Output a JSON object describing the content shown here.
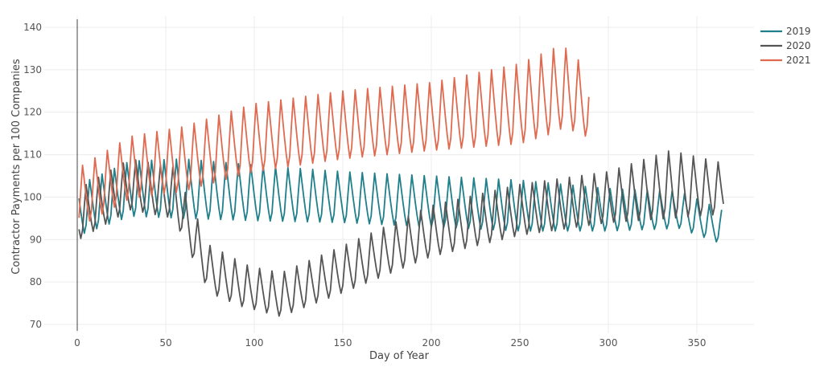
{
  "chart_data": {
    "type": "line",
    "title": "",
    "xlabel": "Day of Year",
    "ylabel": "Contractor Payments per 100 Companies",
    "xlim": [
      -5,
      383
    ],
    "ylim": [
      68,
      142
    ],
    "xticks": [
      0,
      50,
      100,
      150,
      200,
      250,
      300,
      350
    ],
    "yticks": [
      70,
      80,
      90,
      100,
      110,
      120,
      130,
      140
    ],
    "grid": true,
    "legend_position": "top-right",
    "period": 7,
    "series": [
      {
        "name": "2019",
        "color": "#1f7f8a",
        "x_range": [
          1,
          364
        ],
        "trend": [
          [
            1,
            97
          ],
          [
            30,
            102
          ],
          [
            60,
            102
          ],
          [
            100,
            101
          ],
          [
            150,
            100
          ],
          [
            200,
            99
          ],
          [
            250,
            98
          ],
          [
            300,
            97
          ],
          [
            340,
            97
          ],
          [
            364,
            93
          ]
        ],
        "amp": [
          [
            1,
            6
          ],
          [
            60,
            7
          ],
          [
            150,
            6
          ],
          [
            250,
            6
          ],
          [
            300,
            5
          ],
          [
            364,
            4
          ]
        ]
      },
      {
        "name": "2020",
        "color": "#555555",
        "x_range": [
          1,
          365
        ],
        "trend": [
          [
            1,
            96
          ],
          [
            30,
            103
          ],
          [
            55,
            101
          ],
          [
            60,
            96
          ],
          [
            75,
            83
          ],
          [
            95,
            79
          ],
          [
            115,
            77
          ],
          [
            150,
            83
          ],
          [
            200,
            92
          ],
          [
            250,
            97
          ],
          [
            300,
            100
          ],
          [
            335,
            103
          ],
          [
            365,
            102
          ]
        ],
        "amp": [
          [
            1,
            6
          ],
          [
            60,
            6
          ],
          [
            100,
            5
          ],
          [
            200,
            6
          ],
          [
            300,
            6
          ],
          [
            335,
            8
          ],
          [
            365,
            6
          ]
        ]
      },
      {
        "name": "2021",
        "color": "#e06a50",
        "x_range": [
          1,
          289
        ],
        "trend": [
          [
            1,
            100
          ],
          [
            30,
            107
          ],
          [
            60,
            109
          ],
          [
            100,
            114
          ],
          [
            150,
            117
          ],
          [
            200,
            119
          ],
          [
            250,
            122
          ],
          [
            275,
            126
          ],
          [
            289,
            122
          ]
        ],
        "amp": [
          [
            1,
            7
          ],
          [
            100,
            8
          ],
          [
            200,
            8
          ],
          [
            270,
            10
          ],
          [
            289,
            8
          ]
        ]
      }
    ]
  }
}
